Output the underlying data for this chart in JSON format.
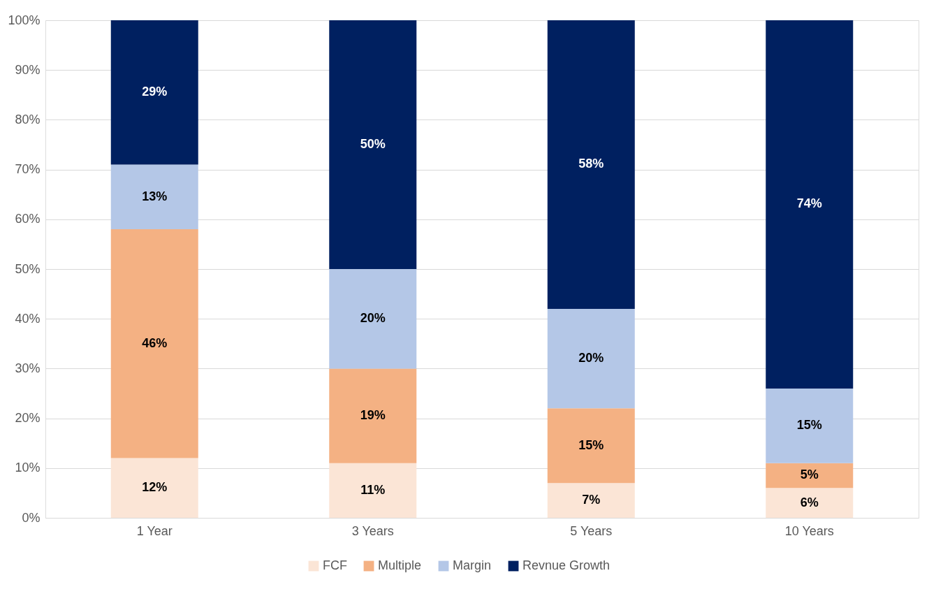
{
  "chart_data": {
    "type": "bar",
    "stacked": true,
    "categories": [
      "1 Year",
      "3 Years",
      "5 Years",
      "10 Years"
    ],
    "series": [
      {
        "name": "FCF",
        "color": "#fbe5d6",
        "values": [
          12,
          11,
          7,
          6
        ],
        "value_labels": [
          "12%",
          "11%",
          "7%",
          "6%"
        ]
      },
      {
        "name": "Multiple",
        "color": "#f4b183",
        "values": [
          46,
          19,
          15,
          5
        ],
        "value_labels": [
          "46%",
          "19%",
          "15%",
          "5%"
        ]
      },
      {
        "name": "Margin",
        "color": "#b4c7e7",
        "values": [
          13,
          20,
          20,
          15
        ],
        "value_labels": [
          "13%",
          "20%",
          "20%",
          "15%"
        ]
      },
      {
        "name": "Revnue Growth",
        "color": "#002060",
        "values": [
          29,
          50,
          58,
          74
        ],
        "value_labels": [
          "29%",
          "50%",
          "58%",
          "74%"
        ]
      }
    ],
    "ylim": [
      0,
      100
    ],
    "yticks": [
      {
        "value": 0,
        "label": "0%"
      },
      {
        "value": 10,
        "label": "10%"
      },
      {
        "value": 20,
        "label": "20%"
      },
      {
        "value": 30,
        "label": "30%"
      },
      {
        "value": 40,
        "label": "40%"
      },
      {
        "value": 50,
        "label": "50%"
      },
      {
        "value": 60,
        "label": "60%"
      },
      {
        "value": 70,
        "label": "70%"
      },
      {
        "value": 80,
        "label": "80%"
      },
      {
        "value": 90,
        "label": "90%"
      },
      {
        "value": 100,
        "label": "100%"
      }
    ],
    "grid": "y",
    "legend": "bottom"
  }
}
